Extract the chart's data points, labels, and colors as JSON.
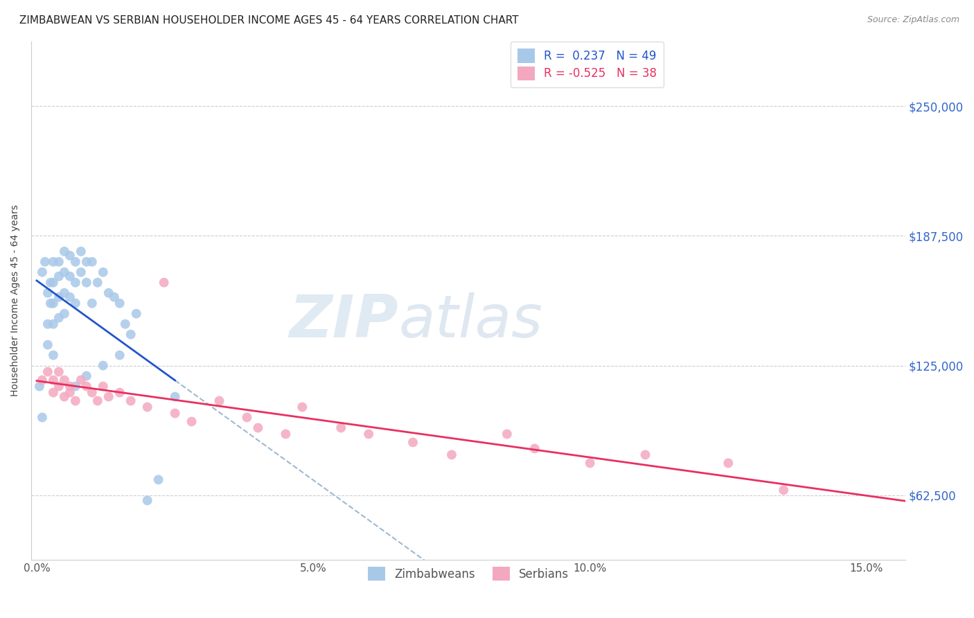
{
  "title": "ZIMBABWEAN VS SERBIAN HOUSEHOLDER INCOME AGES 45 - 64 YEARS CORRELATION CHART",
  "source": "Source: ZipAtlas.com",
  "ylabel": "Householder Income Ages 45 - 64 years",
  "xlabel_ticks": [
    "0.0%",
    "5.0%",
    "10.0%",
    "15.0%"
  ],
  "xlabel_vals": [
    0.0,
    0.05,
    0.1,
    0.15
  ],
  "ylabel_ticks": [
    "$62,500",
    "$125,000",
    "$187,500",
    "$250,000"
  ],
  "ylabel_vals": [
    62500,
    125000,
    187500,
    250000
  ],
  "xlim": [
    -0.001,
    0.157
  ],
  "ylim": [
    31250,
    281250
  ],
  "watermark_zip": "ZIP",
  "watermark_atlas": "atlas",
  "legend_label1": "R =  0.237   N = 49",
  "legend_label2": "R = -0.525   N = 38",
  "legend_bottom_label1": "Zimbabweans",
  "legend_bottom_label2": "Serbians",
  "zim_color": "#a8c8e8",
  "serb_color": "#f4a8c0",
  "zim_line_color": "#2255cc",
  "serb_line_color": "#e83060",
  "dashed_line_color": "#a0b8d0",
  "zim_x": [
    0.0005,
    0.001,
    0.001,
    0.0015,
    0.002,
    0.002,
    0.002,
    0.0025,
    0.0025,
    0.003,
    0.003,
    0.003,
    0.003,
    0.003,
    0.004,
    0.004,
    0.004,
    0.004,
    0.005,
    0.005,
    0.005,
    0.005,
    0.006,
    0.006,
    0.006,
    0.007,
    0.007,
    0.007,
    0.008,
    0.008,
    0.009,
    0.009,
    0.01,
    0.01,
    0.011,
    0.012,
    0.013,
    0.014,
    0.015,
    0.016,
    0.017,
    0.018,
    0.02,
    0.022,
    0.025,
    0.007,
    0.009,
    0.012,
    0.015
  ],
  "zim_y": [
    115000,
    170000,
    100000,
    175000,
    160000,
    145000,
    135000,
    165000,
    155000,
    175000,
    165000,
    155000,
    145000,
    130000,
    175000,
    168000,
    158000,
    148000,
    180000,
    170000,
    160000,
    150000,
    178000,
    168000,
    158000,
    175000,
    165000,
    155000,
    180000,
    170000,
    175000,
    165000,
    175000,
    155000,
    165000,
    170000,
    160000,
    158000,
    155000,
    145000,
    140000,
    150000,
    60000,
    70000,
    110000,
    115000,
    120000,
    125000,
    130000
  ],
  "serb_x": [
    0.001,
    0.002,
    0.003,
    0.003,
    0.004,
    0.004,
    0.005,
    0.005,
    0.006,
    0.006,
    0.007,
    0.008,
    0.009,
    0.01,
    0.011,
    0.012,
    0.013,
    0.015,
    0.017,
    0.02,
    0.023,
    0.025,
    0.028,
    0.033,
    0.038,
    0.04,
    0.045,
    0.048,
    0.055,
    0.06,
    0.068,
    0.075,
    0.085,
    0.09,
    0.1,
    0.11,
    0.125,
    0.135
  ],
  "serb_y": [
    118000,
    122000,
    112000,
    118000,
    115000,
    122000,
    118000,
    110000,
    115000,
    112000,
    108000,
    118000,
    115000,
    112000,
    108000,
    115000,
    110000,
    112000,
    108000,
    105000,
    165000,
    102000,
    98000,
    108000,
    100000,
    95000,
    92000,
    105000,
    95000,
    92000,
    88000,
    82000,
    92000,
    85000,
    78000,
    82000,
    78000,
    65000
  ]
}
